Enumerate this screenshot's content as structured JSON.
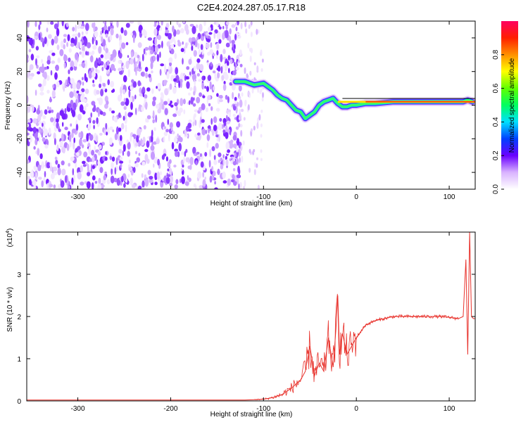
{
  "title": "C2E4.2024.287.05.17.R18",
  "chart_data": [
    {
      "type": "heatmap",
      "xlabel": "Height of straight line (km)",
      "ylabel": "Frequency (Hz)",
      "xlim": [
        -355,
        128
      ],
      "ylim": [
        -50,
        50
      ],
      "xticks": [
        -300,
        -200,
        -100,
        0,
        100
      ],
      "yticks": [
        -40,
        -20,
        0,
        20,
        40
      ],
      "noise_region_x": [
        -355,
        -130
      ],
      "signal_track": {
        "x": [
          -130,
          -120,
          -110,
          -100,
          -95,
          -90,
          -85,
          -80,
          -75,
          -70,
          -65,
          -60,
          -55,
          -50,
          -45,
          -40,
          -35,
          -30,
          -25,
          -20,
          -15,
          -10,
          -5,
          0,
          10,
          20,
          40,
          60,
          80,
          100,
          115,
          120,
          125
        ],
        "y": [
          14,
          14,
          12,
          13,
          11,
          9,
          6,
          4,
          3,
          0,
          -3,
          -4,
          -8,
          -6,
          -4,
          0,
          2,
          3,
          4,
          1,
          -1,
          -1,
          0,
          0,
          1,
          1,
          2,
          2,
          2,
          2,
          2,
          3,
          2
        ]
      },
      "colorbar": {
        "label": "Normalized spectral amplitude",
        "range": [
          0,
          1
        ],
        "ticks": [
          "0.0",
          "0.2",
          "0.4",
          "0.6",
          "0.8"
        ]
      }
    },
    {
      "type": "line",
      "xlabel": "Height of straight line (km)",
      "ylabel": "SNR (10 * v/v)",
      "y_multiplier": "(x10",
      "y_multiplier_exp": "4",
      "y_multiplier_close": ")",
      "xlim": [
        -355,
        128
      ],
      "ylim": [
        0,
        4
      ],
      "xticks": [
        -300,
        -200,
        -100,
        0,
        100
      ],
      "yticks": [
        0,
        1,
        2,
        3
      ],
      "series": [
        {
          "color": "#e8322c",
          "x": [
            -355,
            -300,
            -200,
            -120,
            -110,
            -100,
            -90,
            -80,
            -70,
            -60,
            -55,
            -50,
            -45,
            -40,
            -35,
            -30,
            -25,
            -22,
            -20,
            -18,
            -15,
            -10,
            -5,
            0,
            10,
            20,
            30,
            40,
            50,
            60,
            70,
            80,
            90,
            100,
            110,
            115,
            118,
            120,
            122,
            124,
            126,
            128
          ],
          "y": [
            0.02,
            0.02,
            0.02,
            0.02,
            0.03,
            0.04,
            0.08,
            0.15,
            0.3,
            0.5,
            0.7,
            1.3,
            0.6,
            0.9,
            0.7,
            1.5,
            0.8,
            1.7,
            2.5,
            1.1,
            1.6,
            1.1,
            1.3,
            1.5,
            1.8,
            1.9,
            1.95,
            2.0,
            2.0,
            2.0,
            2.0,
            2.0,
            2.0,
            1.98,
            1.95,
            2.0,
            3.35,
            1.1,
            4.0,
            2.0,
            1.95,
            1.95
          ]
        }
      ]
    }
  ]
}
